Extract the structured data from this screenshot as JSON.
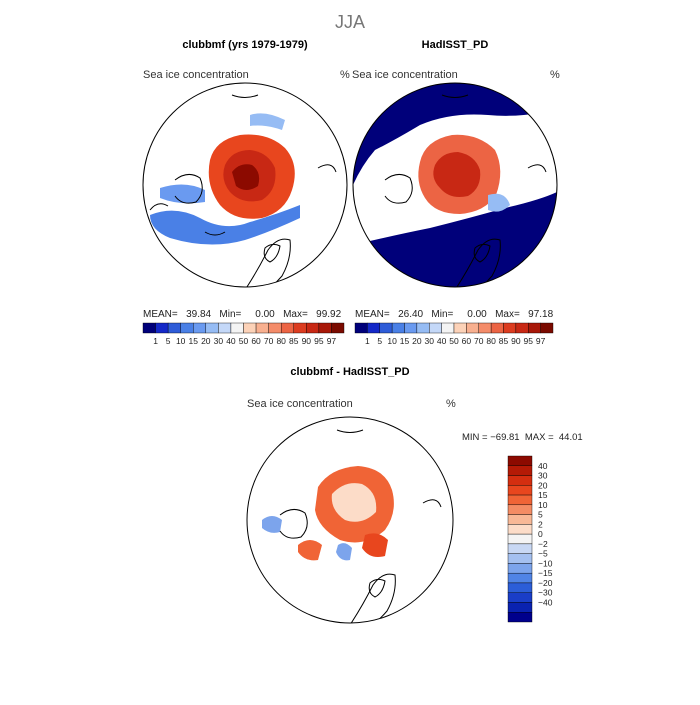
{
  "figure": {
    "season": "JJA"
  },
  "panels": [
    {
      "id": "model",
      "title": "clubbmf (yrs 1979-1979)",
      "field_left": "Sea ice concentration",
      "field_right": "%",
      "stats_line": "MEAN=   39.84   Min=     0.00   Max=   99.92"
    },
    {
      "id": "obs",
      "title": "HadISST_PD",
      "field_left": "Sea ice concentration",
      "field_right": "%",
      "stats_line": "MEAN=   26.40   Min=     0.00   Max=   97.18"
    },
    {
      "id": "diff",
      "title": "clubbmf - HadISST_PD",
      "field_left": "Sea ice concentration",
      "field_right": "%",
      "stats_line": "MIN = −69.81  MAX =  44.01"
    }
  ],
  "colorbar_main": {
    "labels": [
      "1",
      "5",
      "10",
      "15",
      "20",
      "30",
      "40",
      "50",
      "60",
      "70",
      "80",
      "85",
      "90",
      "95",
      "97"
    ],
    "colors": [
      "#00007a",
      "#1428c8",
      "#2e5cd8",
      "#4a80e6",
      "#6a9af0",
      "#96bcf4",
      "#c4d8f8",
      "#f4f4f4",
      "#fcd2b8",
      "#f8b090",
      "#f48c6a",
      "#ec6444",
      "#dc3c20",
      "#c82814",
      "#a81808",
      "#7a0a00"
    ]
  },
  "colorbar_diff": {
    "labels": [
      "40",
      "30",
      "20",
      "15",
      "10",
      "5",
      "2",
      "0",
      "−2",
      "−5",
      "−10",
      "−15",
      "−20",
      "−30",
      "−40"
    ],
    "colors": [
      "#8c0a00",
      "#b41a06",
      "#d42e10",
      "#e8461e",
      "#f06436",
      "#f48c64",
      "#f8b896",
      "#fcdcc8",
      "#f4f4f4",
      "#c8d8f4",
      "#a4c0f0",
      "#7ca4ec",
      "#5084e6",
      "#2c5ed8",
      "#1a3ec8",
      "#0a22b0",
      "#00008c"
    ]
  },
  "maps": {
    "model": {
      "ice_color": "#e8461e",
      "core_color": "#a81808",
      "edge_color": "#4a80e6"
    },
    "obs": {
      "ocean_color": "#00007a",
      "ice_color": "#ec6444",
      "core_color": "#c82814"
    },
    "diff": {
      "pos_color": "#f06436",
      "neg_color": "#7ca4ec"
    }
  }
}
